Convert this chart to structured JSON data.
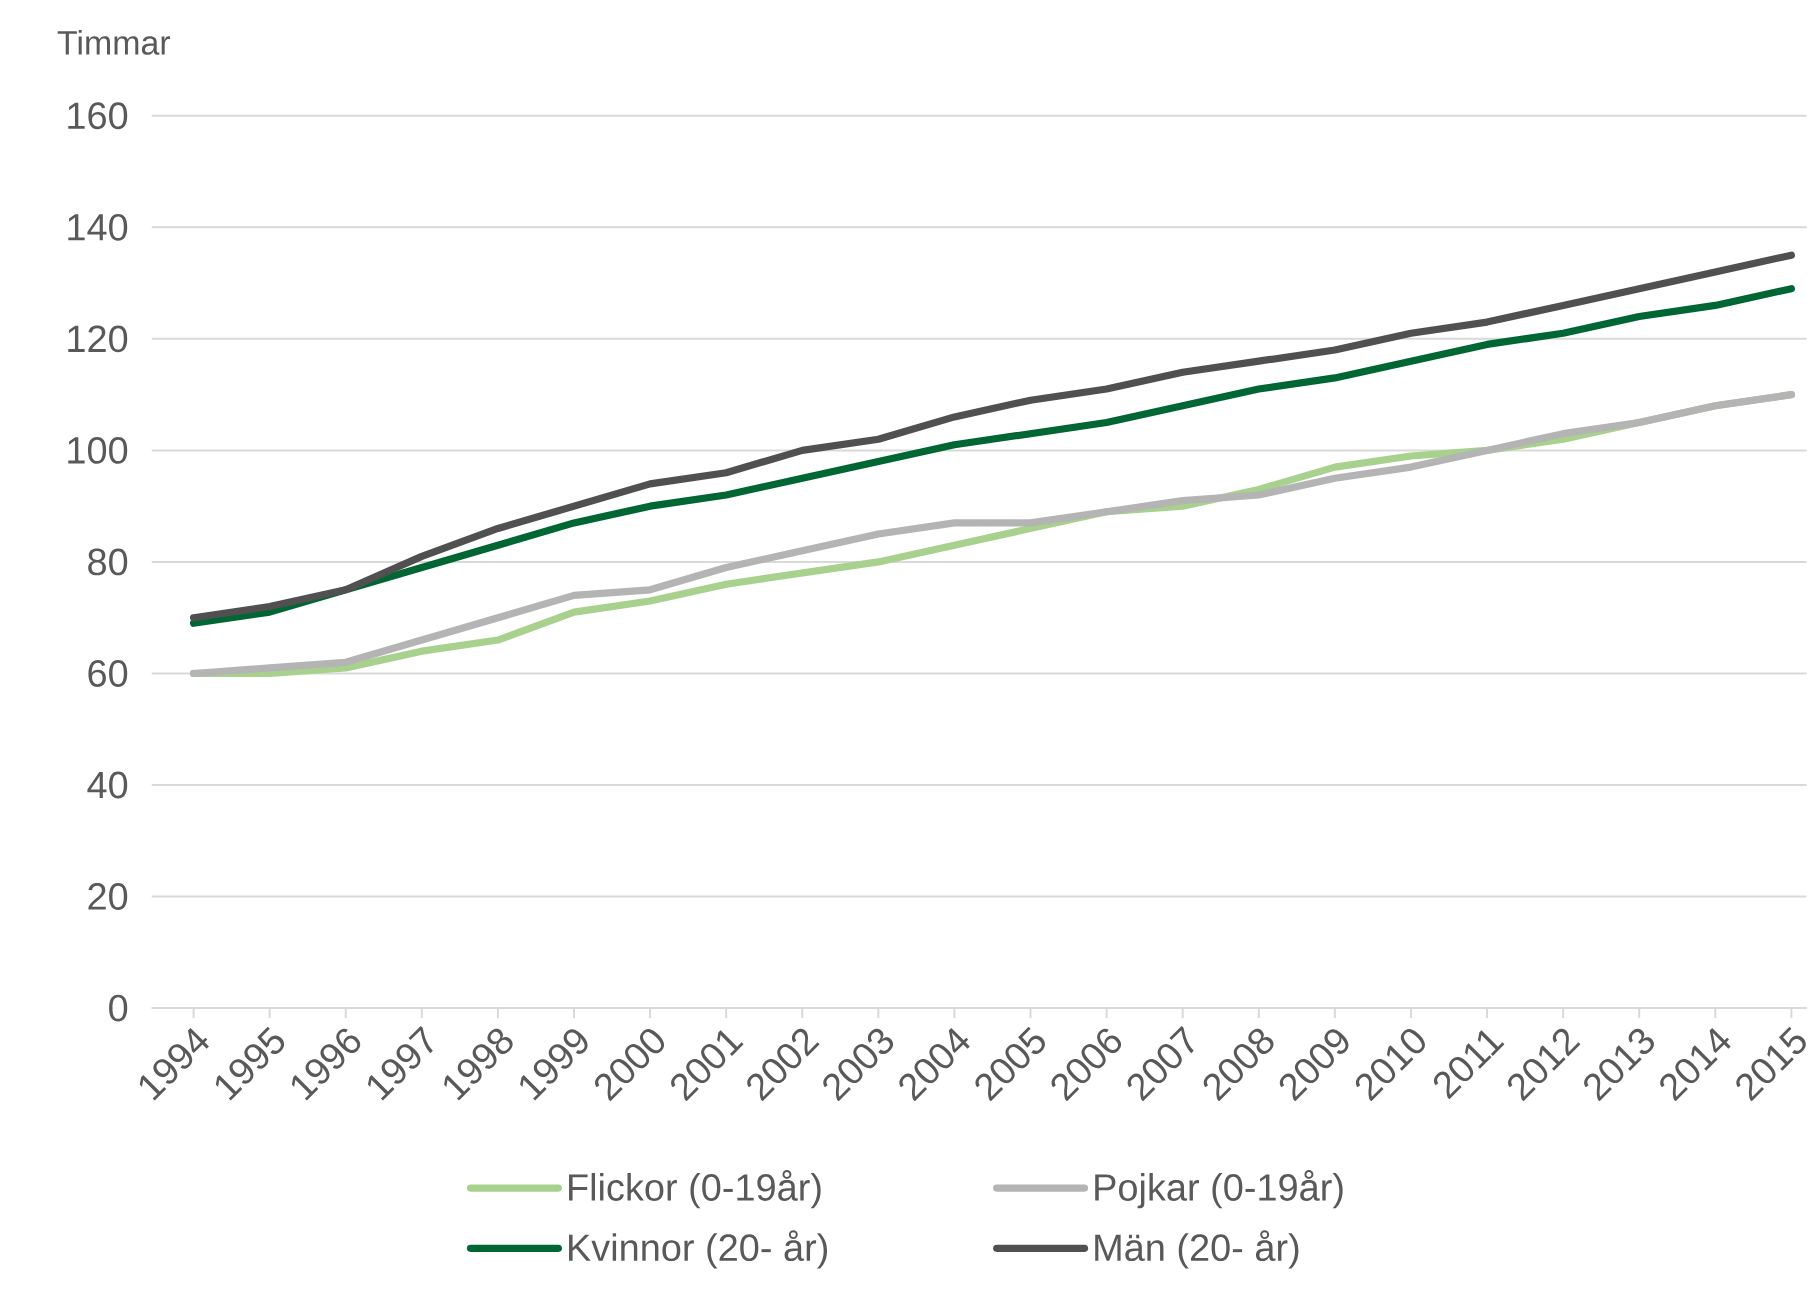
{
  "chart_data": {
    "type": "line",
    "ylabel": "Timmar",
    "categories": [
      "1994",
      "1995",
      "1996",
      "1997",
      "1998",
      "1999",
      "2000",
      "2001",
      "2002",
      "2003",
      "2004",
      "2005",
      "2006",
      "2007",
      "2008",
      "2009",
      "2010",
      "2011",
      "2012",
      "2013",
      "2014",
      "2015"
    ],
    "series": [
      {
        "name": "Flickor  (0-19år)",
        "color": "#a9d18e",
        "values": [
          60,
          60,
          61,
          64,
          66,
          71,
          73,
          76,
          78,
          80,
          83,
          86,
          89,
          90,
          93,
          97,
          99,
          100,
          102,
          105,
          108,
          110
        ]
      },
      {
        "name": "Pojkar (0-19år)",
        "color": "#b4b4b4",
        "values": [
          60,
          61,
          62,
          66,
          70,
          74,
          75,
          79,
          82,
          85,
          87,
          87,
          89,
          91,
          92,
          95,
          97,
          100,
          103,
          105,
          108,
          110
        ]
      },
      {
        "name": "Kvinnor  (20- år)",
        "color": "#006633",
        "values": [
          69,
          71,
          75,
          79,
          83,
          87,
          90,
          92,
          95,
          98,
          101,
          103,
          105,
          108,
          111,
          113,
          116,
          119,
          121,
          124,
          126,
          129
        ]
      },
      {
        "name": "Män  (20- år)",
        "color": "#505050",
        "values": [
          70,
          72,
          75,
          81,
          86,
          90,
          94,
          96,
          100,
          102,
          106,
          109,
          111,
          114,
          116,
          118,
          121,
          123,
          126,
          129,
          132,
          135
        ]
      }
    ],
    "ylim": [
      0,
      160
    ],
    "yticks": [
      0,
      20,
      40,
      60,
      80,
      100,
      120,
      140,
      160
    ],
    "grid": "y",
    "legend": "bottom",
    "marker": "none",
    "line_style": "solid"
  }
}
